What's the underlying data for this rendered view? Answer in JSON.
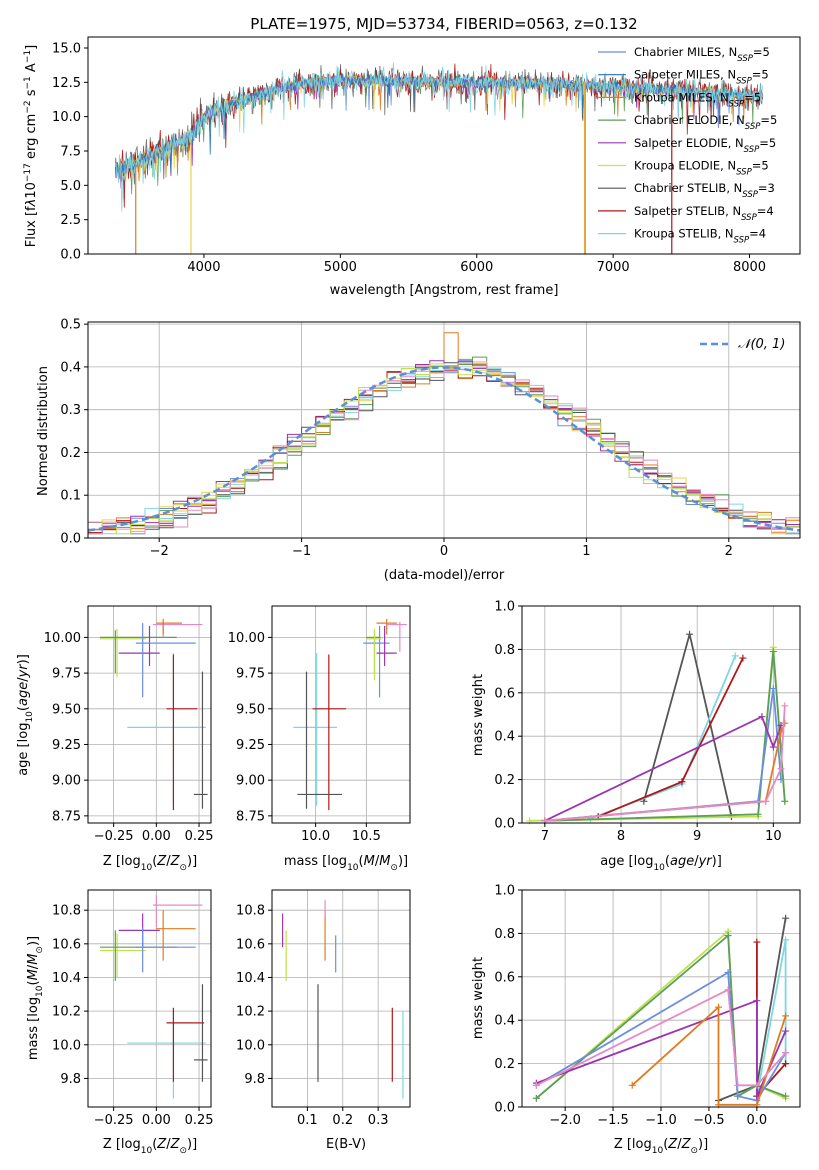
{
  "colors": {
    "Chabrier MILES": "#6a8fe0",
    "Salpeter MILES": "#1f77b4",
    "Kroupa MILES": "#e07b20",
    "Chabrier ELODIE": "#5a9e5a",
    "Salpeter ELODIE": "#9a35b0",
    "Kroupa ELODIE": "#e8d44a",
    "Chabrier STELIB": "#555555",
    "Salpeter STELIB": "#b01818",
    "Kroupa STELIB": "#7fd6e0",
    "extra_pink": "#e58ac6",
    "extra_lime": "#bfe24a",
    "normal": "#5b8fd9",
    "grid": "#b0b0b0"
  },
  "chart_data": [
    {
      "id": "spectrum",
      "type": "line",
      "title": "PLATE=1975, MJD=53734, FIBERID=0563, z=0.132",
      "xlabel": "wavelength [Angstrom, rest frame]",
      "ylabel": "Flux [fλ10⁻¹⁷ erg cm⁻² s⁻¹ Å⁻¹]",
      "xlim": [
        3150,
        8370
      ],
      "ylim": [
        0,
        15.8
      ],
      "xticks": [
        4000,
        5000,
        6000,
        7000,
        8000
      ],
      "yticks": [
        0.0,
        2.5,
        5.0,
        7.5,
        10.0,
        12.5,
        15.0
      ],
      "grid": false,
      "legend_position": "upper-right",
      "legend": [
        {
          "label": "Chabrier MILES, N",
          "sub": "SSP",
          "eq": "=5",
          "color_key": "Chabrier MILES"
        },
        {
          "label": "Salpeter MILES, N",
          "sub": "SSP",
          "eq": "=5",
          "color_key": "Salpeter MILES"
        },
        {
          "label": "Kroupa MILES, N",
          "sub": "SSP",
          "eq": "=5",
          "color_key": "Kroupa MILES"
        },
        {
          "label": "Chabrier ELODIE, N",
          "sub": "SSP",
          "eq": "=5",
          "color_key": "Chabrier ELODIE"
        },
        {
          "label": "Salpeter ELODIE, N",
          "sub": "SSP",
          "eq": "=5",
          "color_key": "Salpeter ELODIE"
        },
        {
          "label": "Kroupa ELODIE, N",
          "sub": "SSP",
          "eq": "=5",
          "color_key": "Kroupa ELODIE"
        },
        {
          "label": "Chabrier STELIB, N",
          "sub": "SSP",
          "eq": "=3",
          "color_key": "Chabrier STELIB"
        },
        {
          "label": "Salpeter STELIB, N",
          "sub": "SSP",
          "eq": "=4",
          "color_key": "Salpeter STELIB"
        },
        {
          "label": "Kroupa STELIB, N",
          "sub": "SSP",
          "eq": "=4",
          "color_key": "Kroupa STELIB"
        }
      ],
      "continuum": [
        [
          3350,
          6.0
        ],
        [
          3500,
          6.6
        ],
        [
          3700,
          7.6
        ],
        [
          3900,
          8.6
        ],
        [
          4000,
          10.0
        ],
        [
          4200,
          10.9
        ],
        [
          4400,
          11.6
        ],
        [
          4700,
          12.4
        ],
        [
          5000,
          12.7
        ],
        [
          5500,
          12.6
        ],
        [
          6000,
          12.5
        ],
        [
          6500,
          12.4
        ],
        [
          7000,
          12.2
        ],
        [
          7500,
          11.9
        ],
        [
          8000,
          11.6
        ],
        [
          8100,
          11.5
        ]
      ],
      "spikes": [
        {
          "x": 3500,
          "series": "Kroupa MILES",
          "y0": 6.5,
          "y1": 0
        },
        {
          "x": 3905,
          "series": "Kroupa ELODIE",
          "y0": 8.5,
          "y1": 0
        },
        {
          "x": 6790,
          "series": "Kroupa ELODIE",
          "y0": 12.4,
          "y1": 0
        },
        {
          "x": 6795,
          "series": "Kroupa MILES",
          "y0": 12.4,
          "y1": 0
        },
        {
          "x": 7430,
          "series": "Salpeter STELIB",
          "y0": 12.0,
          "y1": 0
        }
      ]
    },
    {
      "id": "residuals",
      "type": "histogram",
      "xlabel": "(data-model)/error",
      "ylabel": "Normed distribution",
      "xlim": [
        -2.5,
        2.5
      ],
      "ylim": [
        0,
        0.505
      ],
      "xticks": [
        -2,
        -1,
        0,
        1,
        2
      ],
      "yticks": [
        0.0,
        0.1,
        0.2,
        0.3,
        0.4,
        0.5
      ],
      "grid": true,
      "bin_width": 0.1,
      "legend": [
        {
          "label": "𝒩(0, 1)",
          "color_key": "normal",
          "style": "dashed"
        }
      ],
      "legend_position": "upper-right"
    },
    {
      "id": "age_vs_Z",
      "type": "errorbar",
      "xlabel_main": "Z [log",
      "xlabel_sub": "10",
      "xlabel_rest": "(Z/Z",
      "xlabel_odot": "⊙",
      "xlabel_end": ")]",
      "ylabel": "age  [log₁₀(age/yr)]",
      "xlim": [
        -0.4,
        0.32
      ],
      "ylim": [
        8.7,
        10.22
      ],
      "xticks": [
        -0.25,
        0.0,
        0.25
      ],
      "yticks": [
        8.75,
        9.0,
        9.25,
        9.5,
        9.75,
        10.0
      ],
      "grid": true
    },
    {
      "id": "age_vs_mass",
      "type": "errorbar",
      "xlabel": "mass [log₁₀(M/M⊙)]",
      "xlim": [
        9.57,
        10.93
      ],
      "ylim": [
        8.7,
        10.22
      ],
      "xticks": [
        10.0,
        10.5
      ],
      "yticks": [
        8.75,
        9.0,
        9.25,
        9.5,
        9.75,
        10.0
      ],
      "grid": true
    },
    {
      "id": "weight_vs_age",
      "type": "line",
      "xlabel": "age  [log₁₀(age/yr)]",
      "ylabel": "mass weight",
      "xlim": [
        6.7,
        10.35
      ],
      "ylim": [
        0,
        1.0
      ],
      "xticks": [
        7,
        8,
        9,
        10
      ],
      "yticks": [
        0.0,
        0.2,
        0.4,
        0.6,
        0.8,
        1.0
      ],
      "grid": true,
      "series": [
        {
          "color_key": "Chabrier STELIB",
          "x": [
            8.3,
            8.9,
            9.45
          ],
          "y": [
            0.1,
            0.87,
            0.03
          ]
        },
        {
          "color_key": "Kroupa STELIB",
          "x": [
            7.6,
            8.8,
            9.5
          ],
          "y": [
            0.02,
            0.18,
            0.77
          ]
        },
        {
          "color_key": "Salpeter STELIB",
          "x": [
            7.7,
            8.8,
            9.6
          ],
          "y": [
            0.03,
            0.19,
            0.76
          ]
        },
        {
          "color_key": "extra_lime",
          "x": [
            6.8,
            9.8,
            10.0,
            10.15
          ],
          "y": [
            0.01,
            0.03,
            0.81,
            0.1
          ]
        },
        {
          "color_key": "Chabrier ELODIE",
          "x": [
            7.0,
            9.8,
            10.0,
            10.15
          ],
          "y": [
            0.01,
            0.04,
            0.79,
            0.1
          ]
        },
        {
          "color_key": "Chabrier MILES",
          "x": [
            7.0,
            9.8,
            10.0,
            10.1
          ],
          "y": [
            0.01,
            0.1,
            0.62,
            0.2
          ]
        },
        {
          "color_key": "Salpeter ELODIE",
          "x": [
            7.0,
            9.85,
            10.0,
            10.1
          ],
          "y": [
            0.01,
            0.49,
            0.35,
            0.45
          ]
        },
        {
          "color_key": "Kroupa MILES",
          "x": [
            7.0,
            9.9,
            10.1,
            10.15
          ],
          "y": [
            0.01,
            0.1,
            0.42,
            0.46
          ]
        },
        {
          "color_key": "extra_pink",
          "x": [
            7.0,
            9.9,
            10.1,
            10.15
          ],
          "y": [
            0.01,
            0.1,
            0.25,
            0.54
          ]
        }
      ]
    },
    {
      "id": "mass_vs_Z",
      "type": "errorbar",
      "xlabel": "Z [log₁₀(Z/Z⊙)]",
      "ylabel": "mass [log₁₀(M/M⊙)]",
      "xlim": [
        -0.4,
        0.32
      ],
      "ylim": [
        9.63,
        10.92
      ],
      "xticks": [
        -0.25,
        0.0,
        0.25
      ],
      "yticks": [
        9.8,
        10.0,
        10.2,
        10.4,
        10.6,
        10.8
      ],
      "grid": true
    },
    {
      "id": "mass_vs_EBV",
      "type": "errorbar",
      "xlabel": "E(B-V)",
      "xlim": [
        0.0,
        0.39
      ],
      "ylim": [
        9.63,
        10.92
      ],
      "xticks": [
        0.1,
        0.2,
        0.3
      ],
      "yticks": [
        9.8,
        10.0,
        10.2,
        10.4,
        10.6,
        10.8
      ],
      "grid": true
    },
    {
      "id": "weight_vs_Z",
      "type": "line",
      "xlabel": "Z [log₁₀(Z/Z⊙)]",
      "ylabel": "mass weight",
      "xlim": [
        -2.45,
        0.45
      ],
      "ylim": [
        0,
        1.0
      ],
      "xticks": [
        -2.0,
        -1.5,
        -1.0,
        -0.5,
        0.0
      ],
      "yticks": [
        0.0,
        0.2,
        0.4,
        0.6,
        0.8,
        1.0
      ],
      "grid": true,
      "series": [
        {
          "color_key": "Chabrier STELIB",
          "x": [
            -0.4,
            0.0,
            0.3
          ],
          "y": [
            0.03,
            0.1,
            0.87
          ]
        },
        {
          "color_key": "Kroupa STELIB",
          "x": [
            0.0,
            0.3,
            0.3
          ],
          "y": [
            0.05,
            0.77,
            0.2
          ]
        },
        {
          "color_key": "Salpeter STELIB",
          "x": [
            0.0,
            0.0,
            0.3
          ],
          "y": [
            0.76,
            0.05,
            0.2
          ]
        },
        {
          "color_key": "extra_lime",
          "x": [
            -2.3,
            -0.3,
            -0.2,
            0.0,
            0.3
          ],
          "y": [
            0.04,
            0.81,
            0.05,
            0.1,
            0.04
          ]
        },
        {
          "color_key": "Chabrier ELODIE",
          "x": [
            -2.3,
            -0.3,
            -0.2,
            0.0,
            0.3
          ],
          "y": [
            0.04,
            0.79,
            0.05,
            0.1,
            0.05
          ]
        },
        {
          "color_key": "Chabrier MILES",
          "x": [
            -2.3,
            -0.3,
            -0.2,
            0.0,
            0.3
          ],
          "y": [
            0.1,
            0.62,
            0.05,
            0.03,
            0.25
          ]
        },
        {
          "color_key": "Salpeter ELODIE",
          "x": [
            -2.3,
            0.0,
            0.0,
            0.3
          ],
          "y": [
            0.11,
            0.49,
            0.05,
            0.35
          ]
        },
        {
          "color_key": "Kroupa MILES",
          "x": [
            -1.3,
            -0.4,
            -0.4,
            0.0,
            0.3
          ],
          "y": [
            0.1,
            0.46,
            0.01,
            0.01,
            0.42
          ]
        },
        {
          "color_key": "extra_pink",
          "x": [
            -2.3,
            -0.3,
            -0.2,
            0.0,
            0.3
          ],
          "y": [
            0.1,
            0.54,
            0.1,
            0.1,
            0.25
          ]
        }
      ]
    }
  ],
  "errorbars": {
    "age_vs_Z": [
      {
        "c": "extra_lime",
        "x": -0.23,
        "xe": [
          -0.33,
          -0.06
        ],
        "y": 9.99,
        "ye": [
          9.72,
          10.06
        ]
      },
      {
        "c": "Chabrier ELODIE",
        "x": -0.24,
        "xe": [
          -0.33,
          0.12
        ],
        "y": 10.0,
        "ye": [
          9.75,
          10.05
        ]
      },
      {
        "c": "Salpeter ELODIE",
        "x": -0.04,
        "xe": [
          -0.22,
          0.02
        ],
        "y": 9.89,
        "ye": [
          9.8,
          10.08
        ]
      },
      {
        "c": "Chabrier MILES",
        "x": -0.08,
        "xe": [
          -0.12,
          0.23
        ],
        "y": 9.96,
        "ye": [
          9.58,
          10.1
        ]
      },
      {
        "c": "extra_pink",
        "x": 0.04,
        "xe": [
          -0.02,
          0.27
        ],
        "y": 10.09,
        "ye": [
          10.0,
          10.11
        ]
      },
      {
        "c": "Kroupa MILES",
        "x": 0.04,
        "xe": [
          0.0,
          0.15
        ],
        "y": 10.1,
        "ye": [
          10.02,
          10.13
        ]
      },
      {
        "c": "Kroupa STELIB",
        "x": 0.1,
        "xe": [
          -0.17,
          0.29
        ],
        "y": 9.37,
        "ye": [
          8.82,
          9.89
        ]
      },
      {
        "c": "Salpeter STELIB",
        "x": 0.1,
        "xe": [
          0.06,
          0.24
        ],
        "y": 9.5,
        "ye": [
          8.79,
          9.88
        ]
      },
      {
        "c": "Chabrier STELIB",
        "x": 0.27,
        "xe": [
          0.22,
          0.3
        ],
        "y": 8.9,
        "ye": [
          8.8,
          9.76
        ]
      }
    ],
    "age_vs_mass": [
      {
        "c": "Chabrier MILES",
        "x": 10.63,
        "xe": [
          10.47,
          10.73
        ],
        "y": 9.96,
        "ye": [
          9.58,
          10.08
        ]
      },
      {
        "c": "Chabrier ELODIE",
        "x": 10.58,
        "xe": [
          10.5,
          10.64
        ],
        "y": 10.0,
        "ye": [
          9.75,
          10.05
        ]
      },
      {
        "c": "extra_lime",
        "x": 10.58,
        "xe": [
          10.5,
          10.65
        ],
        "y": 9.99,
        "ye": [
          9.7,
          10.06
        ]
      },
      {
        "c": "Salpeter ELODIE",
        "x": 10.68,
        "xe": [
          10.6,
          10.8
        ],
        "y": 9.89,
        "ye": [
          9.8,
          10.08
        ]
      },
      {
        "c": "Kroupa MILES",
        "x": 10.7,
        "xe": [
          10.6,
          10.8
        ],
        "y": 10.1,
        "ye": [
          10.02,
          10.13
        ]
      },
      {
        "c": "extra_pink",
        "x": 10.83,
        "xe": [
          10.7,
          10.9
        ],
        "y": 10.09,
        "ye": [
          9.9,
          10.11
        ]
      },
      {
        "c": "Kroupa STELIB",
        "x": 10.01,
        "xe": [
          9.78,
          10.21
        ],
        "y": 9.37,
        "ye": [
          8.82,
          9.89
        ]
      },
      {
        "c": "Salpeter STELIB",
        "x": 10.13,
        "xe": [
          9.97,
          10.3
        ],
        "y": 9.5,
        "ye": [
          8.79,
          9.88
        ]
      },
      {
        "c": "Chabrier STELIB",
        "x": 9.91,
        "xe": [
          9.82,
          10.26
        ],
        "y": 8.9,
        "ye": [
          8.8,
          9.76
        ]
      }
    ],
    "mass_vs_Z": [
      {
        "c": "extra_lime",
        "x": -0.23,
        "xe": [
          -0.33,
          -0.06
        ],
        "y": 10.56,
        "ye": [
          10.4,
          10.66
        ]
      },
      {
        "c": "Chabrier ELODIE",
        "x": -0.24,
        "xe": [
          -0.33,
          0.12
        ],
        "y": 10.58,
        "ye": [
          10.38,
          10.68
        ]
      },
      {
        "c": "Salpeter ELODIE",
        "x": -0.08,
        "xe": [
          -0.22,
          0.02
        ],
        "y": 10.68,
        "ye": [
          10.58,
          10.78
        ]
      },
      {
        "c": "Chabrier MILES",
        "x": -0.08,
        "xe": [
          -0.12,
          0.23
        ],
        "y": 10.58,
        "ye": [
          10.43,
          10.7
        ]
      },
      {
        "c": "extra_pink",
        "x": 0.0,
        "xe": [
          -0.02,
          0.27
        ],
        "y": 10.83,
        "ye": [
          10.7,
          10.89
        ]
      },
      {
        "c": "Kroupa MILES",
        "x": 0.04,
        "xe": [
          0.0,
          0.23
        ],
        "y": 10.69,
        "ye": [
          10.5,
          10.8
        ]
      },
      {
        "c": "Kroupa STELIB",
        "x": 0.1,
        "xe": [
          -0.17,
          0.29
        ],
        "y": 10.01,
        "ye": [
          9.68,
          10.2
        ]
      },
      {
        "c": "Salpeter STELIB",
        "x": 0.1,
        "xe": [
          0.06,
          0.28
        ],
        "y": 10.13,
        "ye": [
          9.78,
          10.22
        ]
      },
      {
        "c": "Chabrier STELIB",
        "x": 0.27,
        "xe": [
          0.22,
          0.3
        ],
        "y": 9.91,
        "ye": [
          9.78,
          10.36
        ]
      }
    ],
    "mass_vs_EBV": [
      {
        "c": "Salpeter ELODIE",
        "x": 0.03,
        "y": 10.68,
        "ye": [
          10.58,
          10.78
        ]
      },
      {
        "c": "extra_lime",
        "x": 0.04,
        "y": 10.56,
        "ye": [
          10.38,
          10.68
        ]
      },
      {
        "c": "Kroupa MILES",
        "x": 0.15,
        "y": 10.69,
        "ye": [
          10.5,
          10.8
        ]
      },
      {
        "c": "extra_pink",
        "x": 0.15,
        "y": 10.8,
        "ye": [
          10.76,
          10.86
        ]
      },
      {
        "c": "Chabrier MILES",
        "x": 0.18,
        "y": 10.58,
        "ye": [
          10.43,
          10.65
        ]
      },
      {
        "c": "Chabrier STELIB",
        "x": 0.13,
        "y": 9.91,
        "ye": [
          9.78,
          10.36
        ]
      },
      {
        "c": "Salpeter STELIB",
        "x": 0.34,
        "y": 10.13,
        "ye": [
          9.78,
          10.22
        ]
      },
      {
        "c": "Kroupa STELIB",
        "x": 0.37,
        "y": 10.01,
        "ye": [
          9.68,
          10.2
        ]
      }
    ]
  }
}
